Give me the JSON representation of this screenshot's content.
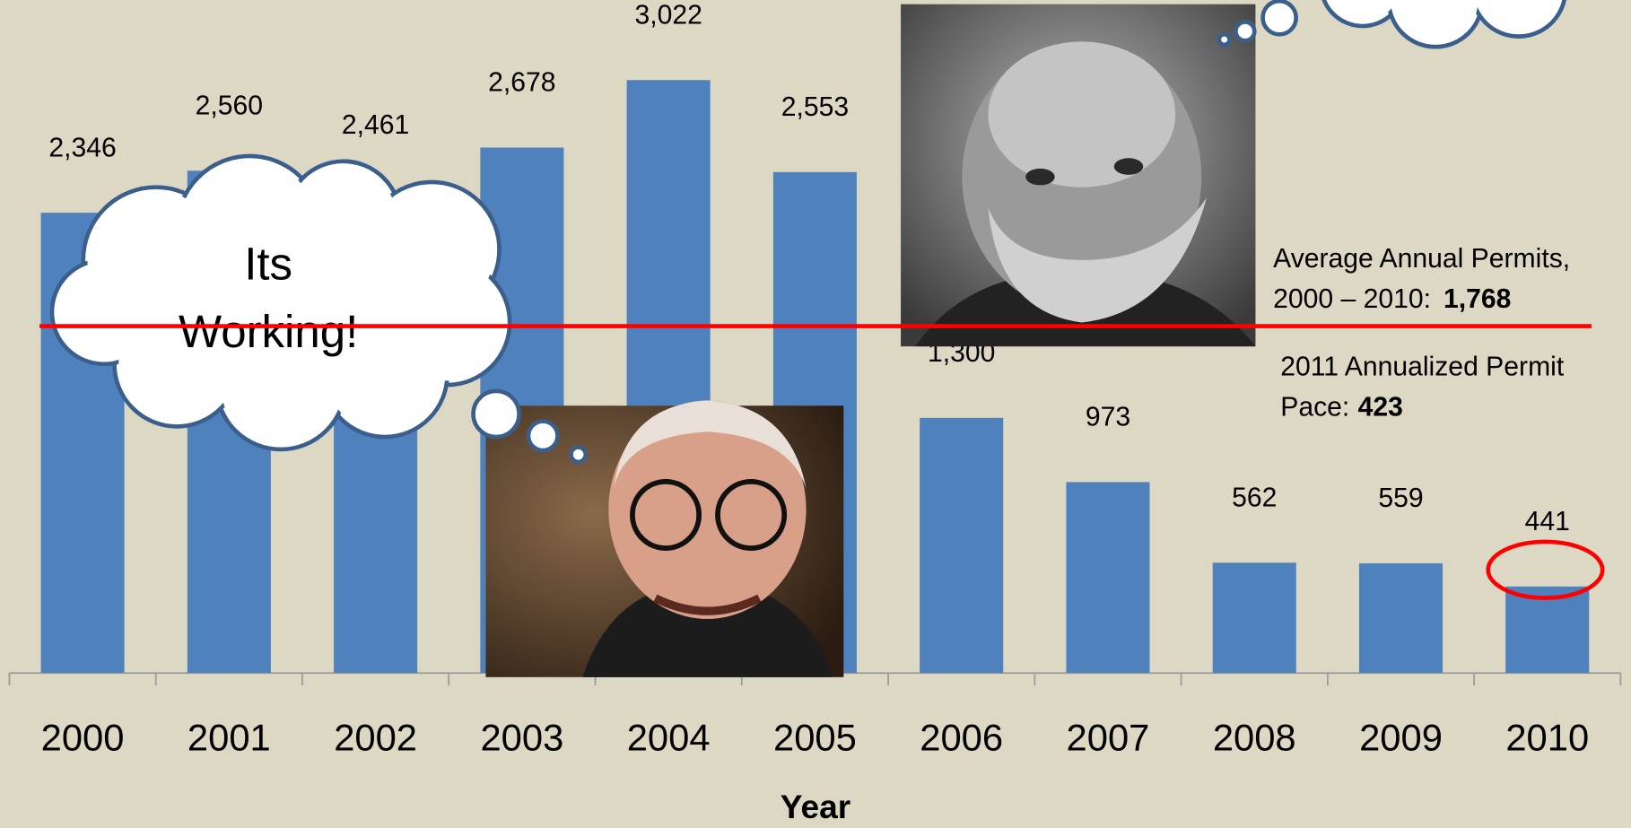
{
  "chart_data": {
    "type": "bar",
    "xlabel": "Year",
    "categories": [
      "2000",
      "2001",
      "2002",
      "2003",
      "2004",
      "2005",
      "2006",
      "2007",
      "2008",
      "2009",
      "2010"
    ],
    "values": [
      2346,
      2560,
      2461,
      2678,
      3022,
      2553,
      1300,
      973,
      562,
      559,
      441
    ],
    "value_labels": [
      "2,346",
      "2,560",
      "2,461",
      "2,678",
      "3,022",
      "2,553",
      "1,300",
      "973",
      "562",
      "559",
      "441"
    ],
    "color": "#4f81bd",
    "ylim": [
      0,
      3430
    ],
    "reference_line": {
      "value": 1768,
      "label": "1,768",
      "text": "Average Annual Permits,",
      "text2": "2000 – 2010:",
      "color": "#ff0000"
    },
    "pace": {
      "value": 423,
      "text": "2011 Annualized Permit",
      "text2": "Pace:"
    },
    "cloud_text": [
      "Its",
      "Working!"
    ]
  }
}
